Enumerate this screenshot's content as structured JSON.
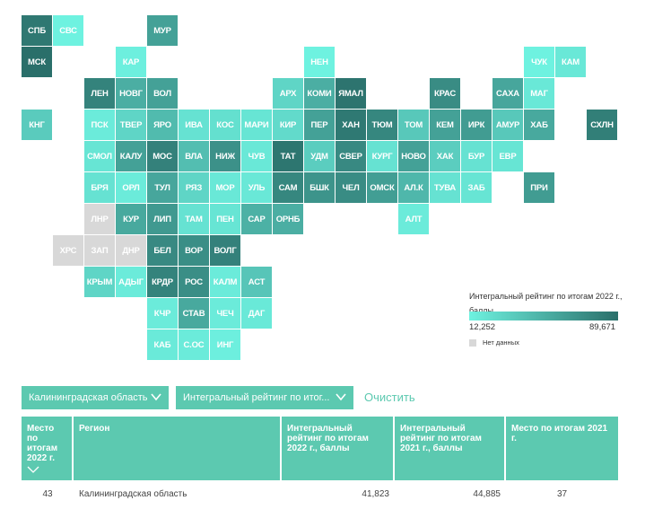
{
  "colors": {
    "accent": "#5cc9b0",
    "scale_low": "#6ef2e0",
    "scale_high": "#2a6f6a",
    "no_data": "#d8d8d8"
  },
  "map": {
    "regions": [
      {
        "label": "СПБ",
        "shade": 0.93
      },
      {
        "label": "СВС",
        "shade": 0.0
      },
      {
        "label": "МУР",
        "shade": 0.62
      },
      {
        "label": "МСК",
        "shade": 1.0
      },
      {
        "label": "КАР",
        "shade": 0.02
      },
      {
        "label": "НЕН",
        "shade": 0.0
      },
      {
        "label": "ЧУК",
        "shade": 0.0
      },
      {
        "label": "КАМ",
        "shade": 0.08
      },
      {
        "label": "ЛЕН",
        "shade": 0.85
      },
      {
        "label": "НОВГ",
        "shade": 0.52
      },
      {
        "label": "ВОЛ",
        "shade": 0.62
      },
      {
        "label": "АРХ",
        "shade": 0.22
      },
      {
        "label": "КОМИ",
        "shade": 0.52
      },
      {
        "label": "ЯМАЛ",
        "shade": 0.96
      },
      {
        "label": "КРАС",
        "shade": 0.78
      },
      {
        "label": "САХА",
        "shade": 0.58
      },
      {
        "label": "МАГ",
        "shade": 0.08
      },
      {
        "label": "КНГ",
        "shade": 0.3
      },
      {
        "label": "ПСК",
        "shade": 0.05
      },
      {
        "label": "ТВЕР",
        "shade": 0.22
      },
      {
        "label": "ЯРО",
        "shade": 0.42
      },
      {
        "label": "ИВА",
        "shade": 0.12
      },
      {
        "label": "КОС",
        "shade": 0.14
      },
      {
        "label": "МАРИ",
        "shade": 0.1
      },
      {
        "label": "КИР",
        "shade": 0.18
      },
      {
        "label": "ПЕР",
        "shade": 0.62
      },
      {
        "label": "ХАН",
        "shade": 0.92
      },
      {
        "label": "ТЮМ",
        "shade": 0.82
      },
      {
        "label": "ТОМ",
        "shade": 0.32
      },
      {
        "label": "КЕМ",
        "shade": 0.62
      },
      {
        "label": "ИРК",
        "shade": 0.66
      },
      {
        "label": "АМУР",
        "shade": 0.32
      },
      {
        "label": "ХАБ",
        "shade": 0.56
      },
      {
        "label": "СХЛН",
        "shade": 0.88
      },
      {
        "label": "СМОЛ",
        "shade": 0.1
      },
      {
        "label": "КАЛУ",
        "shade": 0.62
      },
      {
        "label": "МОС",
        "shade": 0.86
      },
      {
        "label": "ВЛА",
        "shade": 0.4
      },
      {
        "label": "НИЖ",
        "shade": 0.74
      },
      {
        "label": "ЧУВ",
        "shade": 0.08
      },
      {
        "label": "ТАТ",
        "shade": 0.95
      },
      {
        "label": "УДМ",
        "shade": 0.28
      },
      {
        "label": "СВЕР",
        "shade": 0.8
      },
      {
        "label": "КУРГ",
        "shade": 0.12
      },
      {
        "label": "НОВО",
        "shade": 0.62
      },
      {
        "label": "ХАК",
        "shade": 0.28
      },
      {
        "label": "БУР",
        "shade": 0.12
      },
      {
        "label": "ЕВР",
        "shade": 0.1
      },
      {
        "label": "БРЯ",
        "shade": 0.12
      },
      {
        "label": "ОРЛ",
        "shade": 0.05
      },
      {
        "label": "ТУЛ",
        "shade": 0.58
      },
      {
        "label": "РЯЗ",
        "shade": 0.22
      },
      {
        "label": "МОР",
        "shade": 0.08
      },
      {
        "label": "УЛЬ",
        "shade": 0.08
      },
      {
        "label": "САМ",
        "shade": 0.82
      },
      {
        "label": "БШК",
        "shade": 0.72
      },
      {
        "label": "ЧЕЛ",
        "shade": 0.78
      },
      {
        "label": "ОМСК",
        "shade": 0.64
      },
      {
        "label": "АЛ.К",
        "shade": 0.45
      },
      {
        "label": "ТУВА",
        "shade": 0.12
      },
      {
        "label": "ЗАБ",
        "shade": 0.1
      },
      {
        "label": "ПРИ",
        "shade": 0.66
      },
      {
        "label": "ЛНР",
        "shade": null
      },
      {
        "label": "КУР",
        "shade": 0.56
      },
      {
        "label": "ЛИП",
        "shade": 0.68
      },
      {
        "label": "ТАМ",
        "shade": 0.12
      },
      {
        "label": "ПЕН",
        "shade": 0.1
      },
      {
        "label": "САР",
        "shade": 0.5
      },
      {
        "label": "ОРНБ",
        "shade": 0.52
      },
      {
        "label": "АЛТ",
        "shade": 0.05
      },
      {
        "label": "ХРС",
        "shade": null
      },
      {
        "label": "ЗАП",
        "shade": null
      },
      {
        "label": "ДНР",
        "shade": null
      },
      {
        "label": "БЕЛ",
        "shade": 0.8
      },
      {
        "label": "ВОР",
        "shade": 0.76
      },
      {
        "label": "ВОЛГ",
        "shade": 0.86
      },
      {
        "label": "КРЫМ",
        "shade": 0.22
      },
      {
        "label": "АДЫГ",
        "shade": 0.05
      },
      {
        "label": "КРДР",
        "shade": 0.85
      },
      {
        "label": "РОС",
        "shade": 0.76
      },
      {
        "label": "КАЛМ",
        "shade": 0.05
      },
      {
        "label": "АСТ",
        "shade": 0.34
      },
      {
        "label": "КЧР",
        "shade": 0.05
      },
      {
        "label": "СТАВ",
        "shade": 0.56
      },
      {
        "label": "ЧЕЧ",
        "shade": 0.05
      },
      {
        "label": "ДАГ",
        "shade": 0.07
      },
      {
        "label": "КАБ",
        "shade": 0.06
      },
      {
        "label": "С.ОС",
        "shade": 0.05
      },
      {
        "label": "ИНГ",
        "shade": 0.02
      }
    ]
  },
  "legend": {
    "title": "Интегральный рейтинг по итогам 2022 г., баллы",
    "min": "12,252",
    "max": "89,671",
    "no_data": "Нет данных"
  },
  "filters": {
    "region_select": "Калининградская область",
    "metric_select": "Интегральный рейтинг по итог...",
    "clear_label": "Очистить"
  },
  "table": {
    "headers": {
      "place_2022": "Место по итогам 2022 г.",
      "region": "Регион",
      "rating_2022": "Интегральный рейтинг по итогам 2022 г., баллы",
      "rating_2021": "Интегральный рейтинг по итогам 2021 г., баллы",
      "place_2021": "Место по итогам 2021 г."
    },
    "rows": [
      {
        "place_2022": "43",
        "region": "Калининградская область",
        "rating_2022": "41,823",
        "rating_2021": "44,885",
        "place_2021": "37"
      }
    ]
  }
}
